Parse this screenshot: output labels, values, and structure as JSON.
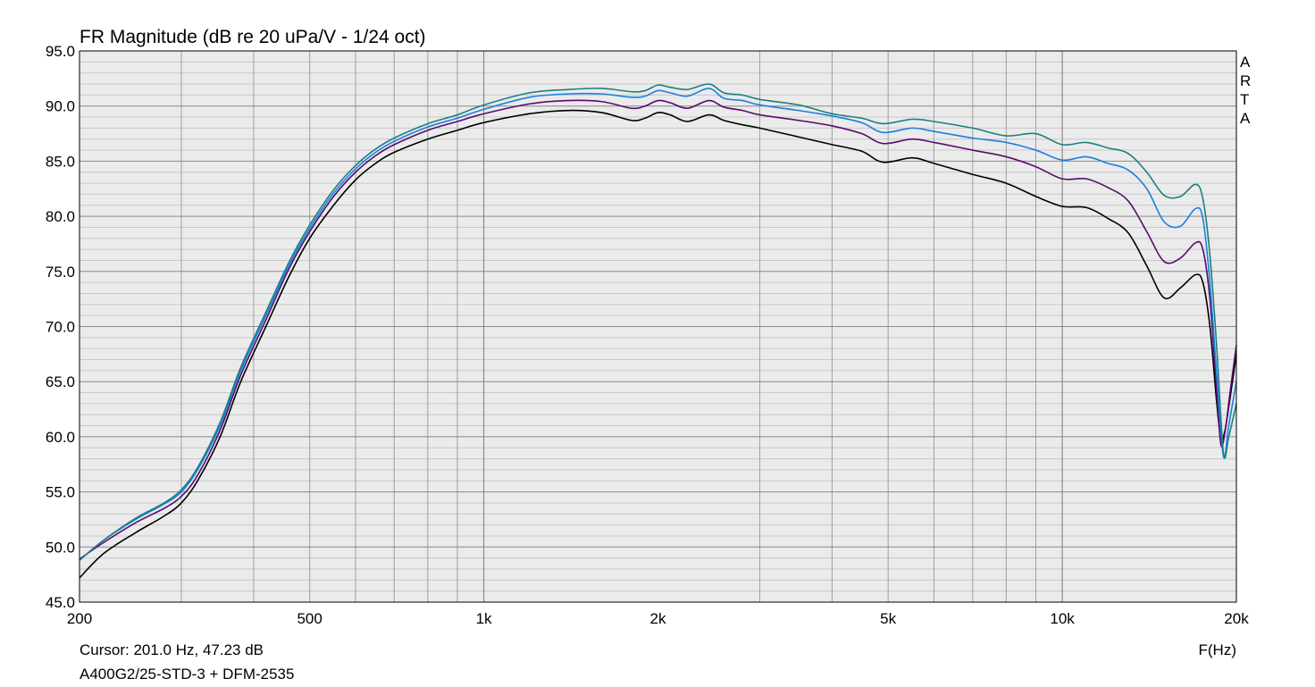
{
  "chart_data": {
    "type": "line",
    "title": "FR Magnitude (dB re 20 uPa/V - 1/24 oct)",
    "xlabel": "F(Hz)",
    "ylabel": "",
    "x_scale": "log",
    "xlim": [
      200,
      20000
    ],
    "ylim": [
      45,
      95
    ],
    "y_ticks": [
      45,
      50,
      55,
      60,
      65,
      70,
      75,
      80,
      85,
      90,
      95
    ],
    "y_tick_labels": [
      "45.0",
      "50.0",
      "55.0",
      "60.0",
      "65.0",
      "70.0",
      "75.0",
      "80.0",
      "85.0",
      "90.0",
      "95.0"
    ],
    "x_tick_labels": [
      {
        "value": 200,
        "label": "200"
      },
      {
        "value": 500,
        "label": "500"
      },
      {
        "value": 1000,
        "label": "1k"
      },
      {
        "value": 2000,
        "label": "2k"
      },
      {
        "value": 5000,
        "label": "5k"
      },
      {
        "value": 10000,
        "label": "10k"
      },
      {
        "value": 20000,
        "label": "20k"
      }
    ],
    "grid": true,
    "background_color": "#ebebeb",
    "grid_color": "#a0a0a0",
    "minor_grid_color": "#c8c8c8",
    "watermark": [
      "A",
      "R",
      "T",
      "A"
    ],
    "cursor_text": "Cursor: 201.0 Hz, 47.23 dB",
    "caption": "A400G2/25-STD-3 + DFM-2535",
    "series": [
      {
        "color": "#000000",
        "points": [
          [
            200,
            47.2
          ],
          [
            220,
            49.4
          ],
          [
            250,
            51.3
          ],
          [
            280,
            52.8
          ],
          [
            300,
            54.0
          ],
          [
            320,
            56.0
          ],
          [
            350,
            60.0
          ],
          [
            380,
            65.0
          ],
          [
            420,
            70.0
          ],
          [
            460,
            74.5
          ],
          [
            500,
            78.0
          ],
          [
            550,
            81.0
          ],
          [
            600,
            83.3
          ],
          [
            650,
            84.8
          ],
          [
            700,
            85.8
          ],
          [
            800,
            87.0
          ],
          [
            900,
            87.8
          ],
          [
            1000,
            88.5
          ],
          [
            1200,
            89.3
          ],
          [
            1400,
            89.6
          ],
          [
            1600,
            89.4
          ],
          [
            1800,
            88.7
          ],
          [
            1900,
            88.9
          ],
          [
            2000,
            89.4
          ],
          [
            2100,
            89.2
          ],
          [
            2250,
            88.6
          ],
          [
            2450,
            89.2
          ],
          [
            2600,
            88.7
          ],
          [
            2800,
            88.3
          ],
          [
            3000,
            88.0
          ],
          [
            3500,
            87.2
          ],
          [
            4000,
            86.5
          ],
          [
            4500,
            85.9
          ],
          [
            4900,
            84.9
          ],
          [
            5500,
            85.3
          ],
          [
            6000,
            84.8
          ],
          [
            7000,
            83.8
          ],
          [
            8000,
            83.0
          ],
          [
            9000,
            81.8
          ],
          [
            10000,
            80.9
          ],
          [
            11000,
            80.8
          ],
          [
            12000,
            79.8
          ],
          [
            13000,
            78.5
          ],
          [
            14000,
            75.5
          ],
          [
            15000,
            72.6
          ],
          [
            16000,
            73.5
          ],
          [
            17000,
            74.7
          ],
          [
            17500,
            74.0
          ],
          [
            18000,
            70.0
          ],
          [
            18500,
            63.0
          ],
          [
            18800,
            59.9
          ],
          [
            19100,
            60.5
          ],
          [
            19500,
            63.5
          ],
          [
            20000,
            67.5
          ]
        ]
      },
      {
        "color": "#5a0a6e",
        "points": [
          [
            200,
            48.9
          ],
          [
            220,
            50.4
          ],
          [
            250,
            52.2
          ],
          [
            280,
            53.5
          ],
          [
            300,
            54.6
          ],
          [
            320,
            56.5
          ],
          [
            350,
            60.6
          ],
          [
            380,
            65.6
          ],
          [
            420,
            70.6
          ],
          [
            460,
            75.2
          ],
          [
            500,
            78.6
          ],
          [
            550,
            81.8
          ],
          [
            600,
            84.0
          ],
          [
            650,
            85.5
          ],
          [
            700,
            86.5
          ],
          [
            800,
            87.8
          ],
          [
            900,
            88.6
          ],
          [
            1000,
            89.3
          ],
          [
            1200,
            90.2
          ],
          [
            1400,
            90.5
          ],
          [
            1600,
            90.4
          ],
          [
            1800,
            89.8
          ],
          [
            1900,
            90.0
          ],
          [
            2000,
            90.5
          ],
          [
            2100,
            90.3
          ],
          [
            2250,
            89.8
          ],
          [
            2450,
            90.5
          ],
          [
            2600,
            89.9
          ],
          [
            2800,
            89.6
          ],
          [
            3000,
            89.2
          ],
          [
            3500,
            88.7
          ],
          [
            4000,
            88.2
          ],
          [
            4500,
            87.5
          ],
          [
            4900,
            86.6
          ],
          [
            5500,
            87.0
          ],
          [
            6000,
            86.7
          ],
          [
            7000,
            86.0
          ],
          [
            8000,
            85.4
          ],
          [
            9000,
            84.5
          ],
          [
            10000,
            83.4
          ],
          [
            11000,
            83.4
          ],
          [
            12000,
            82.6
          ],
          [
            13000,
            81.4
          ],
          [
            14000,
            78.6
          ],
          [
            15000,
            75.9
          ],
          [
            16000,
            76.2
          ],
          [
            17000,
            77.6
          ],
          [
            17500,
            77.0
          ],
          [
            18000,
            72.5
          ],
          [
            18500,
            64.0
          ],
          [
            18800,
            59.3
          ],
          [
            19100,
            60.3
          ],
          [
            19500,
            64.0
          ],
          [
            20000,
            68.3
          ]
        ]
      },
      {
        "color": "#1a7fe0",
        "points": [
          [
            200,
            48.8
          ],
          [
            220,
            50.6
          ],
          [
            250,
            52.5
          ],
          [
            280,
            53.9
          ],
          [
            300,
            55.0
          ],
          [
            320,
            57.0
          ],
          [
            350,
            61.0
          ],
          [
            380,
            66.0
          ],
          [
            420,
            71.0
          ],
          [
            460,
            75.5
          ],
          [
            500,
            78.9
          ],
          [
            550,
            82.1
          ],
          [
            600,
            84.3
          ],
          [
            650,
            85.8
          ],
          [
            700,
            86.8
          ],
          [
            800,
            88.1
          ],
          [
            900,
            88.9
          ],
          [
            1000,
            89.7
          ],
          [
            1200,
            90.8
          ],
          [
            1400,
            91.1
          ],
          [
            1600,
            91.1
          ],
          [
            1800,
            90.8
          ],
          [
            1900,
            90.9
          ],
          [
            2000,
            91.4
          ],
          [
            2100,
            91.2
          ],
          [
            2250,
            90.9
          ],
          [
            2450,
            91.6
          ],
          [
            2600,
            90.7
          ],
          [
            2800,
            90.5
          ],
          [
            3000,
            90.1
          ],
          [
            3500,
            89.6
          ],
          [
            4000,
            89.1
          ],
          [
            4500,
            88.5
          ],
          [
            4900,
            87.6
          ],
          [
            5500,
            88.0
          ],
          [
            6000,
            87.7
          ],
          [
            7000,
            87.1
          ],
          [
            8000,
            86.7
          ],
          [
            9000,
            86.0
          ],
          [
            10000,
            85.1
          ],
          [
            11000,
            85.4
          ],
          [
            12000,
            84.8
          ],
          [
            13000,
            84.2
          ],
          [
            14000,
            82.5
          ],
          [
            15000,
            79.5
          ],
          [
            16000,
            79.1
          ],
          [
            17000,
            80.7
          ],
          [
            17500,
            79.8
          ],
          [
            18000,
            74.0
          ],
          [
            18500,
            65.5
          ],
          [
            19000,
            58.2
          ],
          [
            19400,
            61.0
          ],
          [
            20000,
            65.0
          ]
        ]
      },
      {
        "color": "#1a8080",
        "points": [
          [
            200,
            48.8
          ],
          [
            220,
            50.6
          ],
          [
            250,
            52.6
          ],
          [
            280,
            54.0
          ],
          [
            300,
            55.2
          ],
          [
            320,
            57.2
          ],
          [
            350,
            61.3
          ],
          [
            380,
            66.3
          ],
          [
            420,
            71.3
          ],
          [
            460,
            75.8
          ],
          [
            500,
            79.2
          ],
          [
            550,
            82.4
          ],
          [
            600,
            84.6
          ],
          [
            650,
            86.1
          ],
          [
            700,
            87.1
          ],
          [
            800,
            88.4
          ],
          [
            900,
            89.2
          ],
          [
            1000,
            90.1
          ],
          [
            1200,
            91.2
          ],
          [
            1400,
            91.5
          ],
          [
            1600,
            91.6
          ],
          [
            1800,
            91.3
          ],
          [
            1900,
            91.4
          ],
          [
            2000,
            91.9
          ],
          [
            2100,
            91.7
          ],
          [
            2250,
            91.5
          ],
          [
            2450,
            92.0
          ],
          [
            2600,
            91.2
          ],
          [
            2800,
            91.0
          ],
          [
            3000,
            90.6
          ],
          [
            3500,
            90.1
          ],
          [
            4000,
            89.3
          ],
          [
            4500,
            88.9
          ],
          [
            4900,
            88.4
          ],
          [
            5500,
            88.8
          ],
          [
            6000,
            88.6
          ],
          [
            7000,
            88.0
          ],
          [
            8000,
            87.3
          ],
          [
            9000,
            87.5
          ],
          [
            10000,
            86.5
          ],
          [
            11000,
            86.7
          ],
          [
            12000,
            86.2
          ],
          [
            13000,
            85.7
          ],
          [
            14000,
            84.0
          ],
          [
            15000,
            81.9
          ],
          [
            16000,
            81.8
          ],
          [
            17000,
            82.9
          ],
          [
            17500,
            81.6
          ],
          [
            18000,
            76.5
          ],
          [
            18500,
            68.0
          ],
          [
            19000,
            58.5
          ],
          [
            19400,
            60.0
          ],
          [
            20000,
            63.0
          ]
        ]
      }
    ]
  }
}
